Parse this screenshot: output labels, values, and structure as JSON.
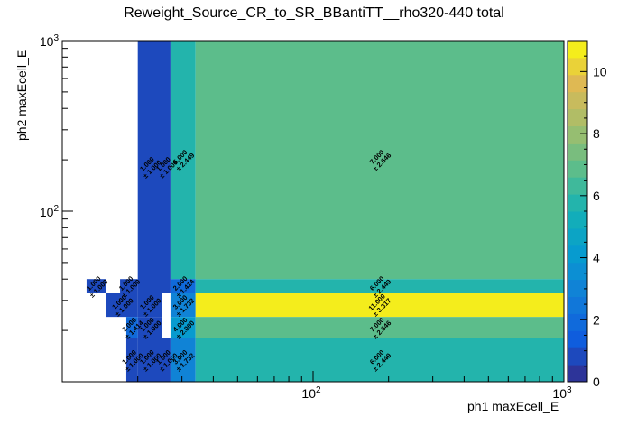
{
  "chart_data": {
    "type": "heatmap",
    "title": "Reweight_Source_CR_to_SR_BBantiTT__rho320-440 total",
    "xlabel": "ph1 maxEcell_E",
    "ylabel": "ph2 maxEcell_E",
    "x_scale": "log",
    "y_scale": "log",
    "xlim": [
      10,
      1000
    ],
    "ylim": [
      10,
      1000
    ],
    "x_tick_labels": [
      "10^2",
      "10^3"
    ],
    "y_tick_labels": [
      "10^2",
      "10^3"
    ],
    "colorbar": {
      "zlim": [
        0,
        11
      ],
      "ticks": [
        0,
        2,
        4,
        6,
        8,
        10
      ]
    },
    "cells": [
      {
        "x": [
          12.5,
          15
        ],
        "y": [
          33,
          40
        ],
        "value": 1.0,
        "error": 1.0,
        "label": "1.000",
        "error_label": "± 1.000"
      },
      {
        "x": [
          17,
          20
        ],
        "y": [
          33,
          40
        ],
        "value": 1.0,
        "error": 1.0,
        "label": "1.000",
        "error_label": "± 1.000"
      },
      {
        "x": [
          15,
          20
        ],
        "y": [
          24,
          33
        ],
        "value": 1.0,
        "error": 1.0,
        "label": "1.000",
        "error_label": "± 1.000"
      },
      {
        "x": [
          20,
          25
        ],
        "y": [
          33,
          1000
        ],
        "value": 1.0,
        "error": 1.0,
        "label": "1.000",
        "error_label": "± 1.000"
      },
      {
        "x": [
          20,
          25
        ],
        "y": [
          24,
          33
        ],
        "value": 1.0,
        "error": 1.0,
        "label": "1.000",
        "error_label": "± 1.000"
      },
      {
        "x": [
          20,
          25
        ],
        "y": [
          18,
          24
        ],
        "value": 1.0,
        "error": 1.0,
        "label": "1.000",
        "error_label": "± 1.000"
      },
      {
        "x": [
          20,
          25
        ],
        "y": [
          10,
          18
        ],
        "value": 1.0,
        "error": 1.0,
        "label": "1.000",
        "error_label": "± 1.000"
      },
      {
        "x": [
          18,
          20
        ],
        "y": [
          18,
          24
        ],
        "value": 2.0,
        "error": 1.414,
        "label": "2.000",
        "error_label": "± 1.414"
      },
      {
        "x": [
          18,
          20
        ],
        "y": [
          10,
          18
        ],
        "value": 1.0,
        "error": 1.0,
        "label": "1.000",
        "error_label": "± 1.000"
      },
      {
        "x": [
          25,
          27
        ],
        "y": [
          33,
          1000
        ],
        "value": 1.0,
        "error": 1.0,
        "label": "1.000",
        "error_label": "± 1.000"
      },
      {
        "x": [
          25,
          27
        ],
        "y": [
          10,
          18
        ],
        "value": 1.0,
        "error": 1.0,
        "label": "1.000",
        "error_label": "± 1.000"
      },
      {
        "x": [
          27,
          34
        ],
        "y": [
          40,
          1000
        ],
        "value": 6.0,
        "error": 2.449,
        "label": "6.000",
        "error_label": "± 2.449"
      },
      {
        "x": [
          27,
          34
        ],
        "y": [
          33,
          40
        ],
        "value": 2.0,
        "error": 1.414,
        "label": "2.000",
        "error_label": "± 1.414"
      },
      {
        "x": [
          27,
          34
        ],
        "y": [
          24,
          33
        ],
        "value": 3.0,
        "error": 1.732,
        "label": "3.000",
        "error_label": "± 1.732"
      },
      {
        "x": [
          27,
          34
        ],
        "y": [
          18,
          24
        ],
        "value": 4.0,
        "error": 2.0,
        "label": "4.000",
        "error_label": "± 2.000"
      },
      {
        "x": [
          27,
          34
        ],
        "y": [
          10,
          18
        ],
        "value": 3.0,
        "error": 1.732,
        "label": "3.000",
        "error_label": "± 1.732"
      },
      {
        "x": [
          34,
          1000
        ],
        "y": [
          40,
          1000
        ],
        "value": 7.0,
        "error": 2.646,
        "label": "7.000",
        "error_label": "± 2.646"
      },
      {
        "x": [
          34,
          1000
        ],
        "y": [
          33,
          40
        ],
        "value": 6.0,
        "error": 2.449,
        "label": "6.000",
        "error_label": "± 2.449"
      },
      {
        "x": [
          34,
          1000
        ],
        "y": [
          24,
          33
        ],
        "value": 11.0,
        "error": 3.317,
        "label": "11.000",
        "error_label": "± 3.317"
      },
      {
        "x": [
          34,
          1000
        ],
        "y": [
          18,
          24
        ],
        "value": 7.0,
        "error": 2.646,
        "label": "7.000",
        "error_label": "± 2.646"
      },
      {
        "x": [
          34,
          1000
        ],
        "y": [
          10,
          18
        ],
        "value": 6.0,
        "error": 2.449,
        "label": "6.000",
        "error_label": "± 2.449"
      }
    ]
  }
}
